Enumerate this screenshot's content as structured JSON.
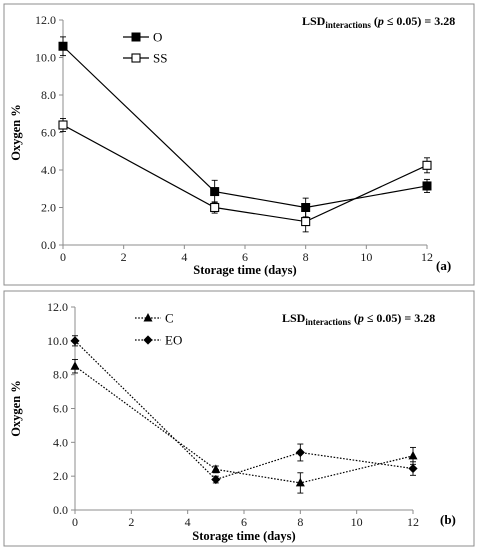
{
  "chart_data": [
    {
      "type": "line",
      "panel_label": "(a)",
      "annotation": {
        "lead": "LSD",
        "subscript": "interactions",
        "open": " (",
        "p": "p",
        "rest": " ≤ 0.05) = 3.28"
      },
      "xlabel": "Storage time (days)",
      "ylabel": "Oxygen %",
      "xlim": [
        0,
        12
      ],
      "ylim": [
        0,
        12
      ],
      "x_ticks": [
        0,
        2,
        4,
        6,
        8,
        10,
        12
      ],
      "x_tick_labels": [
        "0",
        "2",
        "4",
        "6",
        "8",
        "10",
        "12"
      ],
      "y_ticks": [
        0,
        2,
        4,
        6,
        8,
        10,
        12
      ],
      "y_tick_labels": [
        "0.0",
        "2.0",
        "4.0",
        "6.0",
        "8.0",
        "10.0",
        "12.0"
      ],
      "grid": false,
      "legend_position": "top-left",
      "series": [
        {
          "name": "O",
          "marker": "square-filled",
          "line_style": "solid",
          "color": "#000000",
          "x": [
            0,
            5,
            8,
            12
          ],
          "y": [
            10.6,
            2.85,
            2.0,
            3.15
          ],
          "err": [
            0.5,
            0.6,
            0.5,
            0.35
          ]
        },
        {
          "name": "SS",
          "marker": "square-open",
          "line_style": "solid",
          "color": "#000000",
          "x": [
            0,
            5,
            8,
            12
          ],
          "y": [
            6.4,
            2.0,
            1.25,
            4.25
          ],
          "err": [
            0.35,
            0.3,
            0.55,
            0.4
          ]
        }
      ]
    },
    {
      "type": "line",
      "panel_label": "(b)",
      "annotation": {
        "lead": "LSD",
        "subscript": "interactions",
        "open": " (",
        "p": "p",
        "rest": " ≤ 0.05) = 3.28"
      },
      "xlabel": "Storage time (days)",
      "ylabel": "Oxygen %",
      "xlim": [
        0,
        12
      ],
      "ylim": [
        0,
        12
      ],
      "x_ticks": [
        0,
        2,
        4,
        6,
        8,
        10,
        12
      ],
      "x_tick_labels": [
        "0",
        "2",
        "4",
        "6",
        "8",
        "10",
        "12"
      ],
      "y_ticks": [
        0,
        2,
        4,
        6,
        8,
        10,
        12
      ],
      "y_tick_labels": [
        "0.0",
        "2.0",
        "4.0",
        "6.0",
        "8.0",
        "10.0",
        "12.0"
      ],
      "grid": false,
      "legend_position": "top-left",
      "series": [
        {
          "name": "C",
          "marker": "triangle-filled",
          "line_style": "dotted",
          "color": "#000000",
          "x": [
            0,
            5,
            8,
            12
          ],
          "y": [
            8.5,
            2.4,
            1.6,
            3.2
          ],
          "err": [
            0.4,
            0.2,
            0.6,
            0.5
          ]
        },
        {
          "name": "EO",
          "marker": "diamond-filled",
          "line_style": "dotted",
          "color": "#000000",
          "x": [
            0,
            5,
            8,
            12
          ],
          "y": [
            10.0,
            1.8,
            3.4,
            2.45
          ],
          "err": [
            0.3,
            0.2,
            0.5,
            0.4
          ]
        }
      ]
    }
  ]
}
